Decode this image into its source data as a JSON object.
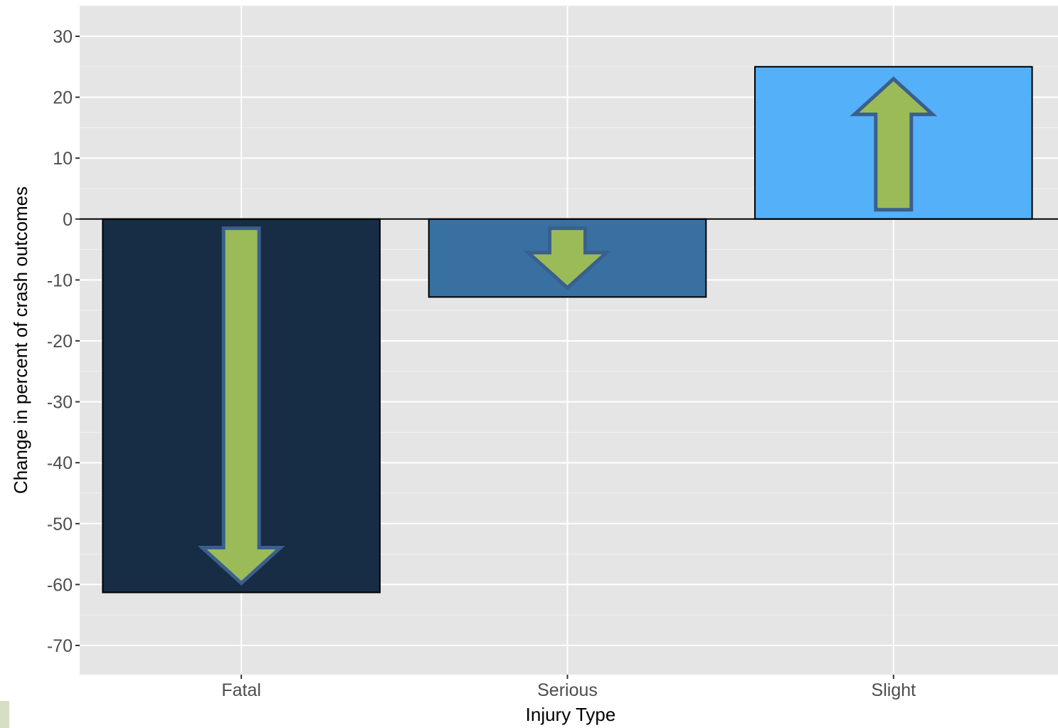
{
  "chart_data": {
    "type": "bar",
    "title": "",
    "xlabel": "Injury Type",
    "ylabel": "Change in percent of crash outcomes",
    "categories": [
      "Fatal",
      "Serious",
      "Slight"
    ],
    "values": [
      -61.3,
      -12.8,
      25
    ],
    "ylim": [
      -75,
      35
    ],
    "yticks": [
      30,
      20,
      10,
      0,
      -10,
      -20,
      -30,
      -40,
      -50,
      -60,
      -70
    ],
    "bar_colors": [
      "#172c45",
      "#3770a1",
      "#54b0f8"
    ],
    "arrow_directions": [
      "down",
      "down",
      "up"
    ],
    "arrow_color": "#9bbb59",
    "arrow_outline": "#3b5f8c",
    "panel_background": "#e5e5e5",
    "grid": true,
    "legend": "none"
  }
}
